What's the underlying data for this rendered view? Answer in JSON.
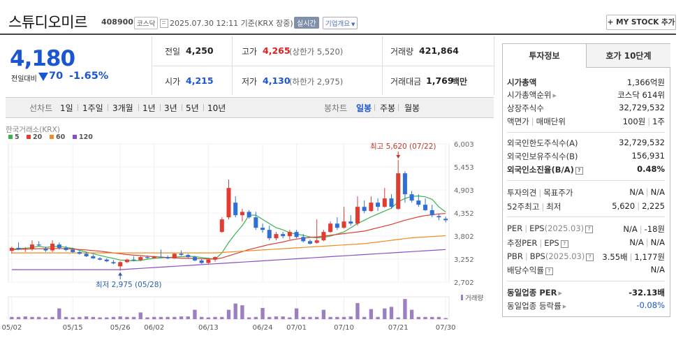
{
  "header": {
    "stock_name": "스튜디오미르",
    "stock_code": "408900",
    "market": "코스닥",
    "datetime": "2025.07.30 12:11 기준(KRX 장중)",
    "realtime_label": "실시간",
    "overview_label": "기업개요",
    "mystock_label": "+ MY STOCK 추가"
  },
  "price": {
    "current": "4,180",
    "vs_label": "전일대비",
    "change": "70",
    "change_pct": "-1.65%"
  },
  "quote": {
    "prev_close_label": "전일",
    "prev_close": "4,250",
    "high_label": "고가",
    "high": "4,265",
    "upper_limit": "(상한가 5,520)",
    "volume_label": "거래량",
    "volume": "421,864",
    "open_label": "시가",
    "open": "4,215",
    "low_label": "저가",
    "low": "4,130",
    "lower_limit": "(하한가 2,975)",
    "value_label": "거래대금",
    "value": "1,769",
    "value_unit": "백만"
  },
  "period_tabs": {
    "line_label": "선차트",
    "line": [
      "1일",
      "1주일",
      "3개월",
      "1년",
      "3년",
      "5년",
      "10년"
    ],
    "candle_label": "봉차트",
    "candle": [
      "일봉",
      "주봉",
      "월봉"
    ],
    "selected": "일봉"
  },
  "chart": {
    "source_label": "한국거래소(KRX)",
    "legend": [
      "5",
      "20",
      "60",
      "120"
    ],
    "legend_colors": [
      "#3bb34a",
      "#e03c31",
      "#f08b1e",
      "#8a4fc7"
    ],
    "max_label": "최고 5,620 (07/22)",
    "min_label": "최저 2,975 (05/28)",
    "volume_label": "거래량",
    "up_color": "#e03c31",
    "down_color": "#2f6fd6"
  },
  "chart_data": {
    "type": "candlestick",
    "y_ticks": [
      6003,
      5453,
      4903,
      4352,
      3802,
      3252,
      2702
    ],
    "ylim": [
      2702,
      6003
    ],
    "x_tick_labels": [
      "05/02",
      "05/15",
      "05/26",
      "06/02",
      "06/13",
      "06/24",
      "07/01",
      "07/10",
      "07/21",
      "07/30"
    ],
    "x_tick_index": [
      0,
      9,
      16,
      21,
      29,
      37,
      42,
      49,
      57,
      64
    ],
    "candles": [
      {
        "o": 3450,
        "h": 3550,
        "l": 3380,
        "c": 3520
      },
      {
        "o": 3520,
        "h": 3650,
        "l": 3470,
        "c": 3480
      },
      {
        "o": 3480,
        "h": 3540,
        "l": 3420,
        "c": 3500
      },
      {
        "o": 3500,
        "h": 3700,
        "l": 3450,
        "c": 3600
      },
      {
        "o": 3600,
        "h": 3680,
        "l": 3550,
        "c": 3580
      },
      {
        "o": 3500,
        "h": 3550,
        "l": 3420,
        "c": 3460
      },
      {
        "o": 3460,
        "h": 3700,
        "l": 3420,
        "c": 3620
      },
      {
        "o": 3600,
        "h": 3650,
        "l": 3480,
        "c": 3520
      },
      {
        "o": 3520,
        "h": 3560,
        "l": 3440,
        "c": 3470
      },
      {
        "o": 3480,
        "h": 3520,
        "l": 3400,
        "c": 3420
      },
      {
        "o": 3420,
        "h": 3450,
        "l": 3360,
        "c": 3380
      },
      {
        "o": 3380,
        "h": 3420,
        "l": 3300,
        "c": 3320
      },
      {
        "o": 3320,
        "h": 3360,
        "l": 3260,
        "c": 3270
      },
      {
        "o": 3270,
        "h": 3300,
        "l": 3220,
        "c": 3240
      },
      {
        "o": 3240,
        "h": 3270,
        "l": 3180,
        "c": 3200
      },
      {
        "o": 3180,
        "h": 3230,
        "l": 3130,
        "c": 3150
      },
      {
        "o": 3080,
        "h": 3200,
        "l": 2975,
        "c": 3180
      },
      {
        "o": 3180,
        "h": 3260,
        "l": 3160,
        "c": 3240
      },
      {
        "o": 3240,
        "h": 3320,
        "l": 3200,
        "c": 3230
      },
      {
        "o": 3230,
        "h": 3320,
        "l": 3200,
        "c": 3300
      },
      {
        "o": 3300,
        "h": 3340,
        "l": 3260,
        "c": 3280
      },
      {
        "o": 3280,
        "h": 3330,
        "l": 3260,
        "c": 3310
      },
      {
        "o": 3310,
        "h": 3480,
        "l": 3290,
        "c": 3300
      },
      {
        "o": 3300,
        "h": 3340,
        "l": 3250,
        "c": 3270
      },
      {
        "o": 3270,
        "h": 3390,
        "l": 3260,
        "c": 3380
      },
      {
        "o": 3380,
        "h": 3460,
        "l": 3330,
        "c": 3350
      },
      {
        "o": 3350,
        "h": 3380,
        "l": 3280,
        "c": 3300
      },
      {
        "o": 3300,
        "h": 3330,
        "l": 3200,
        "c": 3220
      },
      {
        "o": 3220,
        "h": 3250,
        "l": 3140,
        "c": 3160
      },
      {
        "o": 3160,
        "h": 3260,
        "l": 3140,
        "c": 3240
      },
      {
        "o": 3240,
        "h": 3320,
        "l": 3190,
        "c": 3300
      },
      {
        "o": 3900,
        "h": 4250,
        "l": 3880,
        "c": 4200
      },
      {
        "o": 4250,
        "h": 5150,
        "l": 4200,
        "c": 4950
      },
      {
        "o": 4600,
        "h": 4750,
        "l": 4250,
        "c": 4300
      },
      {
        "o": 4300,
        "h": 4450,
        "l": 4150,
        "c": 4380
      },
      {
        "o": 4380,
        "h": 4420,
        "l": 4220,
        "c": 4250
      },
      {
        "o": 4250,
        "h": 4380,
        "l": 3950,
        "c": 4000
      },
      {
        "o": 4000,
        "h": 4100,
        "l": 3880,
        "c": 3950
      },
      {
        "o": 3950,
        "h": 4050,
        "l": 3700,
        "c": 3750
      },
      {
        "o": 3750,
        "h": 3900,
        "l": 3700,
        "c": 3850
      },
      {
        "o": 3850,
        "h": 3900,
        "l": 3750,
        "c": 3800
      },
      {
        "o": 3800,
        "h": 3950,
        "l": 3720,
        "c": 3900
      },
      {
        "o": 3900,
        "h": 3950,
        "l": 3750,
        "c": 3780
      },
      {
        "o": 3780,
        "h": 3850,
        "l": 3650,
        "c": 3680
      },
      {
        "o": 3680,
        "h": 3720,
        "l": 3600,
        "c": 3620
      },
      {
        "o": 3640,
        "h": 4200,
        "l": 3620,
        "c": 3700
      },
      {
        "o": 3700,
        "h": 3950,
        "l": 3680,
        "c": 3900
      },
      {
        "o": 3900,
        "h": 4150,
        "l": 3880,
        "c": 4100
      },
      {
        "o": 4100,
        "h": 4250,
        "l": 3950,
        "c": 4000
      },
      {
        "o": 4000,
        "h": 4500,
        "l": 3980,
        "c": 4150
      },
      {
        "o": 4150,
        "h": 4300,
        "l": 4050,
        "c": 4100
      },
      {
        "o": 4100,
        "h": 4750,
        "l": 4050,
        "c": 4500
      },
      {
        "o": 4500,
        "h": 4650,
        "l": 4350,
        "c": 4400
      },
      {
        "o": 4400,
        "h": 4750,
        "l": 4380,
        "c": 4600
      },
      {
        "o": 4600,
        "h": 4700,
        "l": 4400,
        "c": 4500
      },
      {
        "o": 4500,
        "h": 4950,
        "l": 4480,
        "c": 4700
      },
      {
        "o": 4700,
        "h": 4800,
        "l": 4450,
        "c": 4500
      },
      {
        "o": 4450,
        "h": 5620,
        "l": 4430,
        "c": 5300
      },
      {
        "o": 5300,
        "h": 5350,
        "l": 4600,
        "c": 4800
      },
      {
        "o": 4800,
        "h": 4880,
        "l": 4600,
        "c": 4650
      },
      {
        "o": 4650,
        "h": 4800,
        "l": 4500,
        "c": 4550
      },
      {
        "o": 4550,
        "h": 4700,
        "l": 4400,
        "c": 4420
      },
      {
        "o": 4420,
        "h": 4550,
        "l": 4250,
        "c": 4300
      },
      {
        "o": 4280,
        "h": 4330,
        "l": 4180,
        "c": 4250
      },
      {
        "o": 4215,
        "h": 4265,
        "l": 4130,
        "c": 4180
      }
    ],
    "ma5": [
      3490,
      3500,
      3510,
      3530,
      3560,
      3530,
      3550,
      3560,
      3530,
      3510,
      3460,
      3420,
      3380,
      3340,
      3300,
      3270,
      3230,
      3220,
      3210,
      3220,
      3250,
      3270,
      3280,
      3290,
      3300,
      3310,
      3320,
      3310,
      3290,
      3270,
      3250,
      3400,
      3650,
      3860,
      4050,
      4300,
      4300,
      4200,
      4100,
      4000,
      3950,
      3880,
      3850,
      3820,
      3780,
      3760,
      3770,
      3800,
      3850,
      3900,
      4000,
      4100,
      4180,
      4260,
      4330,
      4400,
      4470,
      4620,
      4700,
      4750,
      4760,
      4740,
      4680,
      4500,
      4380
    ],
    "ma20": [
      3480,
      3485,
      3490,
      3495,
      3500,
      3500,
      3505,
      3505,
      3500,
      3495,
      3480,
      3470,
      3455,
      3440,
      3420,
      3400,
      3380,
      3360,
      3345,
      3335,
      3320,
      3310,
      3300,
      3290,
      3280,
      3275,
      3270,
      3265,
      3260,
      3255,
      3250,
      3280,
      3330,
      3380,
      3430,
      3480,
      3520,
      3560,
      3600,
      3630,
      3660,
      3700,
      3730,
      3750,
      3770,
      3780,
      3800,
      3820,
      3840,
      3860,
      3880,
      3900,
      3920,
      3960,
      4000,
      4040,
      4080,
      4130,
      4180,
      4220,
      4260,
      4290,
      4310,
      4330,
      4340
    ],
    "ma60": [
      3400,
      3400,
      3400,
      3400,
      3400,
      3400,
      3400,
      3400,
      3400,
      3400,
      3400,
      3400,
      3400,
      3400,
      3400,
      3400,
      3400,
      3400,
      3400,
      3400,
      3400,
      3400,
      3400,
      3400,
      3400,
      3400,
      3400,
      3400,
      3400,
      3400,
      3400,
      3410,
      3420,
      3430,
      3440,
      3450,
      3460,
      3470,
      3480,
      3490,
      3500,
      3510,
      3520,
      3530,
      3540,
      3550,
      3560,
      3570,
      3580,
      3590,
      3600,
      3610,
      3620,
      3640,
      3660,
      3680,
      3700,
      3720,
      3740,
      3760,
      3770,
      3780,
      3790,
      3800,
      3810
    ],
    "ma120": [
      3000,
      3000,
      3000,
      3000,
      3000,
      3000,
      3000,
      3000,
      3000,
      3000,
      3000,
      3000,
      3000,
      3000,
      3000,
      3000,
      3000,
      3010,
      3020,
      3030,
      3040,
      3050,
      3060,
      3070,
      3080,
      3090,
      3100,
      3110,
      3120,
      3130,
      3140,
      3150,
      3160,
      3170,
      3180,
      3190,
      3200,
      3210,
      3220,
      3230,
      3240,
      3250,
      3260,
      3270,
      3280,
      3290,
      3300,
      3310,
      3320,
      3330,
      3340,
      3350,
      3360,
      3370,
      3380,
      3390,
      3400,
      3410,
      3420,
      3430,
      3440,
      3450,
      3460,
      3470,
      3480
    ],
    "volume_rel": [
      0.1,
      0.1,
      0.12,
      0.1,
      0.1,
      0.08,
      0.1,
      0.48,
      0.1,
      0.08,
      0.1,
      0.12,
      0.1,
      0.08,
      0.08,
      0.1,
      0.12,
      0.1,
      0.1,
      0.3,
      0.08,
      0.1,
      0.1,
      0.1,
      0.1,
      0.12,
      0.12,
      0.42,
      0.1,
      0.08,
      0.1,
      0.1,
      0.42,
      0.7,
      0.62,
      0.08,
      0.1,
      0.5,
      0.1,
      0.12,
      0.12,
      0.08,
      0.48,
      0.1,
      0.1,
      0.1,
      0.42,
      0.1,
      0.1,
      0.1,
      0.12,
      0.72,
      0.1,
      0.45,
      0.1,
      0.48,
      0.55,
      0.08,
      0.9,
      0.42,
      0.1,
      0.1,
      0.1,
      0.1,
      0.05
    ]
  },
  "right_panel": {
    "tab_invest": "투자정보",
    "tab_orderbook": "호가 10단계",
    "market_cap_label": "시가총액",
    "market_cap": "1,366억원",
    "market_cap_rank_label": "시가총액순위",
    "market_cap_rank": "코스닥 614위",
    "shares_label": "상장주식수",
    "shares": "32,729,532",
    "par_label": "액면가",
    "trade_unit_label": "매매단위",
    "par": "100원",
    "trade_unit": "1주",
    "foreign_limit_label": "외국인한도주식수(A)",
    "foreign_limit": "32,729,532",
    "foreign_hold_label": "외국인보유주식수(B)",
    "foreign_hold": "156,931",
    "foreign_ratio_label": "외국인소진율(B/A)",
    "foreign_ratio": "0.48%",
    "opinion_label": "투자의견",
    "target_label": "목표주가",
    "opinion": "N/A",
    "target": "N/A",
    "week52_high_label": "52주최고",
    "week52_low_label": "최저",
    "week52_high": "5,620",
    "week52_low": "2,225",
    "per_label": "PER",
    "eps_label": "EPS",
    "per_period": "(2025.03)",
    "per": "N/A",
    "eps": "-18원",
    "est_per_label": "추정PER",
    "est_eps_label": "EPS",
    "est_per": "N/A",
    "est_eps": "N/A",
    "pbr_label": "PBR",
    "bps_label": "BPS",
    "pbr_period": "(2025.03)",
    "pbr": "3.55배",
    "bps": "1,177원",
    "dividend_label": "배당수익률",
    "dividend": "N/A",
    "sector_per_label": "동일업종 PER",
    "sector_per": "-32.13배",
    "sector_rate_label": "동일업종 등락률",
    "sector_rate": "-0.08%"
  }
}
